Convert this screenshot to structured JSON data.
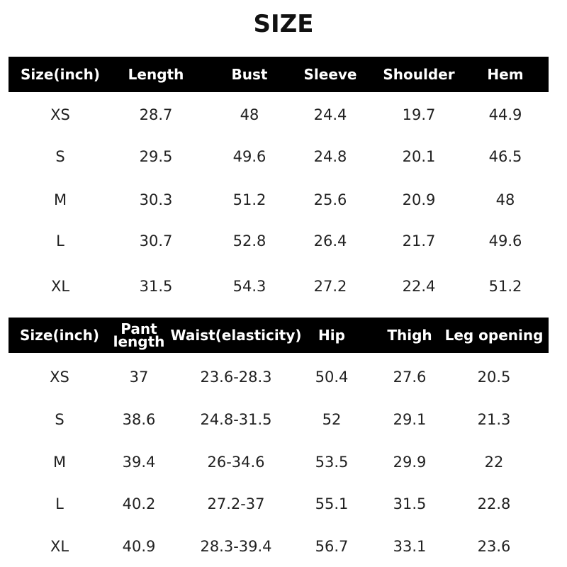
{
  "title": "SIZE",
  "tables": [
    {
      "columns": [
        "Size(inch)",
        "Length",
        "Bust",
        "Sleeve",
        "Shoulder",
        "Hem"
      ],
      "rows": [
        [
          "XS",
          "28.7",
          "48",
          "24.4",
          "19.7",
          "44.9"
        ],
        [
          "S",
          "29.5",
          "49.6",
          "24.8",
          "20.1",
          "46.5"
        ],
        [
          "M",
          "30.3",
          "51.2",
          "25.6",
          "20.9",
          "48"
        ],
        [
          "L",
          "30.7",
          "52.8",
          "26.4",
          "21.7",
          "49.6"
        ],
        [
          "XL",
          "31.5",
          "54.3",
          "27.2",
          "22.4",
          "51.2"
        ]
      ]
    },
    {
      "columns": [
        "Size(inch)",
        "Pant length",
        "Waist(elasticity)",
        "Hip",
        "Thigh",
        "Leg opening"
      ],
      "rows": [
        [
          "XS",
          "37",
          "23.6-28.3",
          "50.4",
          "27.6",
          "20.5"
        ],
        [
          "S",
          "38.6",
          "24.8-31.5",
          "52",
          "29.1",
          "21.3"
        ],
        [
          "M",
          "39.4",
          "26-34.6",
          "53.5",
          "29.9",
          "22"
        ],
        [
          "L",
          "40.2",
          "27.2-37",
          "55.1",
          "31.5",
          "22.8"
        ],
        [
          "XL",
          "40.9",
          "28.3-39.4",
          "56.7",
          "33.1",
          "23.6"
        ]
      ]
    }
  ]
}
